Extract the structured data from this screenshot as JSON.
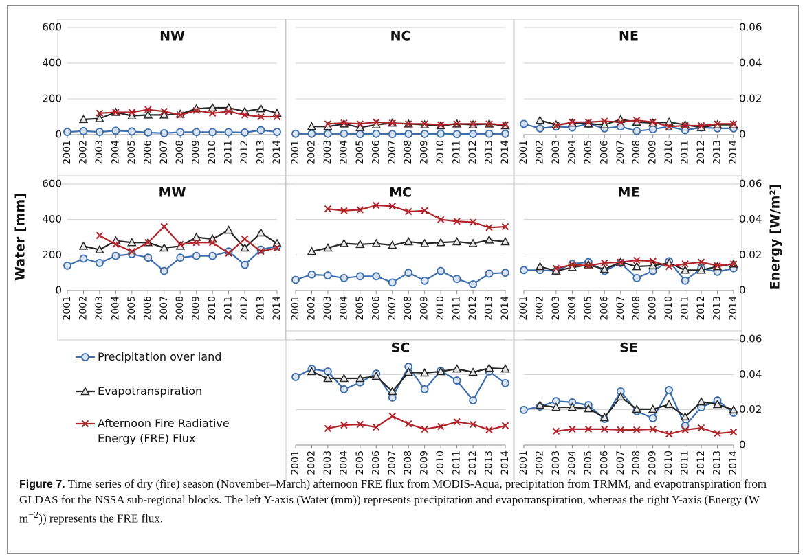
{
  "chart_data": {
    "type": "line",
    "y_label": "Water [mm]",
    "y2_label": "Energy [W/m²]",
    "x": [
      2001,
      2002,
      2003,
      2004,
      2005,
      2006,
      2007,
      2008,
      2009,
      2010,
      2011,
      2012,
      2013,
      2014
    ],
    "xlim": [
      2001,
      2014
    ],
    "ylim": [
      0,
      600
    ],
    "yticks": [
      0,
      200,
      400,
      600
    ],
    "y2lim": [
      0,
      0.06
    ],
    "y2ticks": [
      0,
      0.02,
      0.04,
      0.06
    ],
    "grid": true,
    "series": [
      {
        "name": "Precipitation over land",
        "color": "#3d6fae",
        "marker": "circle"
      },
      {
        "name": "Evapotranspiration",
        "color": "#262626",
        "marker": "triangle"
      },
      {
        "name": "Afternoon Fire Radiative Energy (FRE) Flux",
        "color": "#b0242a",
        "marker": "x",
        "axis": "y2"
      }
    ],
    "panels": [
      {
        "title": "NW",
        "tick_labels": "left",
        "values": [
          [
            15,
            20,
            15,
            22,
            18,
            12,
            8,
            14,
            14,
            14,
            14,
            12,
            25,
            15
          ],
          [
            null,
            85,
            90,
            125,
            105,
            110,
            110,
            115,
            145,
            150,
            150,
            130,
            145,
            120
          ],
          [
            null,
            null,
            0.012,
            0.0125,
            0.0125,
            0.014,
            0.013,
            0.011,
            0.0135,
            0.012,
            0.013,
            0.011,
            0.01,
            0.01
          ]
        ]
      },
      {
        "title": "NC",
        "tick_labels": "none",
        "values": [
          [
            5,
            5,
            5,
            5,
            3,
            5,
            3,
            4,
            4,
            5,
            3,
            4,
            5,
            5
          ],
          [
            null,
            45,
            45,
            60,
            40,
            55,
            65,
            60,
            55,
            50,
            60,
            55,
            60,
            50
          ],
          [
            null,
            null,
            0.006,
            0.0065,
            0.006,
            0.007,
            0.0065,
            0.006,
            0.006,
            0.0055,
            0.006,
            0.006,
            0.006,
            0.0055
          ]
        ]
      },
      {
        "title": "NE",
        "tick_labels": "right",
        "values": [
          [
            60,
            35,
            45,
            40,
            60,
            35,
            45,
            20,
            30,
            45,
            25,
            40,
            35,
            35
          ],
          [
            null,
            80,
            55,
            65,
            60,
            55,
            85,
            70,
            65,
            70,
            55,
            40,
            55,
            55
          ],
          [
            null,
            null,
            0.005,
            0.007,
            0.007,
            0.0075,
            0.007,
            0.008,
            0.007,
            0.0045,
            0.005,
            0.005,
            0.006,
            0.006
          ]
        ]
      },
      {
        "title": "MW",
        "tick_labels": "left",
        "values": [
          [
            140,
            180,
            155,
            195,
            205,
            185,
            110,
            185,
            195,
            195,
            220,
            145,
            230,
            250
          ],
          [
            null,
            250,
            230,
            280,
            270,
            270,
            240,
            250,
            300,
            290,
            340,
            240,
            325,
            265
          ],
          [
            null,
            null,
            0.031,
            0.026,
            0.022,
            0.027,
            0.036,
            0.026,
            0.027,
            0.027,
            0.021,
            0.029,
            0.022,
            0.024
          ]
        ]
      },
      {
        "title": "MC",
        "tick_labels": "none",
        "values": [
          [
            60,
            90,
            85,
            70,
            80,
            80,
            45,
            100,
            55,
            110,
            65,
            35,
            95,
            100
          ],
          [
            null,
            220,
            240,
            265,
            260,
            265,
            255,
            275,
            265,
            270,
            275,
            265,
            285,
            275
          ],
          [
            null,
            null,
            0.046,
            0.045,
            0.0455,
            0.048,
            0.0475,
            0.0445,
            0.045,
            0.04,
            0.039,
            0.0385,
            0.0355,
            0.036
          ]
        ]
      },
      {
        "title": "ME",
        "tick_labels": "right",
        "values": [
          [
            115,
            115,
            110,
            150,
            160,
            110,
            155,
            70,
            110,
            165,
            55,
            125,
            105,
            125
          ],
          [
            null,
            135,
            110,
            130,
            145,
            120,
            160,
            135,
            140,
            155,
            115,
            115,
            135,
            150
          ],
          [
            null,
            null,
            0.0125,
            0.0145,
            0.014,
            0.0155,
            0.016,
            0.017,
            0.0165,
            0.0135,
            0.015,
            0.016,
            0.014,
            0.015
          ]
        ]
      },
      {
        "title": "SC",
        "tick_labels": "none",
        "values": [
          [
            386,
            432,
            417,
            316,
            355,
            405,
            269,
            444,
            316,
            421,
            366,
            253,
            417,
            351
          ],
          [
            null,
            417,
            378,
            378,
            378,
            390,
            304,
            413,
            409,
            417,
            432,
            413,
            436,
            432
          ],
          [
            null,
            null,
            0.0094,
            0.0113,
            0.0117,
            0.0101,
            0.0164,
            0.012,
            0.009,
            0.0105,
            0.0132,
            0.0117,
            0.0086,
            0.011
          ]
        ]
      },
      {
        "title": "SE",
        "tick_labels": "right",
        "values": [
          [
            199,
            218,
            249,
            242,
            226,
            148,
            304,
            191,
            152,
            312,
            109,
            214,
            253,
            183
          ],
          [
            null,
            226,
            214,
            214,
            206,
            156,
            273,
            203,
            203,
            230,
            160,
            245,
            230,
            199
          ],
          [
            null,
            null,
            0.0078,
            0.009,
            0.009,
            0.009,
            0.0086,
            0.0086,
            0.009,
            0.0062,
            0.0086,
            0.0097,
            0.0066,
            0.0074
          ]
        ]
      }
    ]
  },
  "caption": {
    "label": "Figure 7.",
    "text": " Time series of dry (fire) season (November–March) afternoon FRE flux from MODIS-Aqua, precipitation from TRMM, and evapotranspiration from GLDAS for the NSSA sub-regional blocks. The left Y-axis (Water (mm)) represents precipitation and evapotranspiration, whereas the right Y-axis (Energy (W m",
    "superscript": "−2",
    "text_end": ")) represents the FRE flux."
  }
}
